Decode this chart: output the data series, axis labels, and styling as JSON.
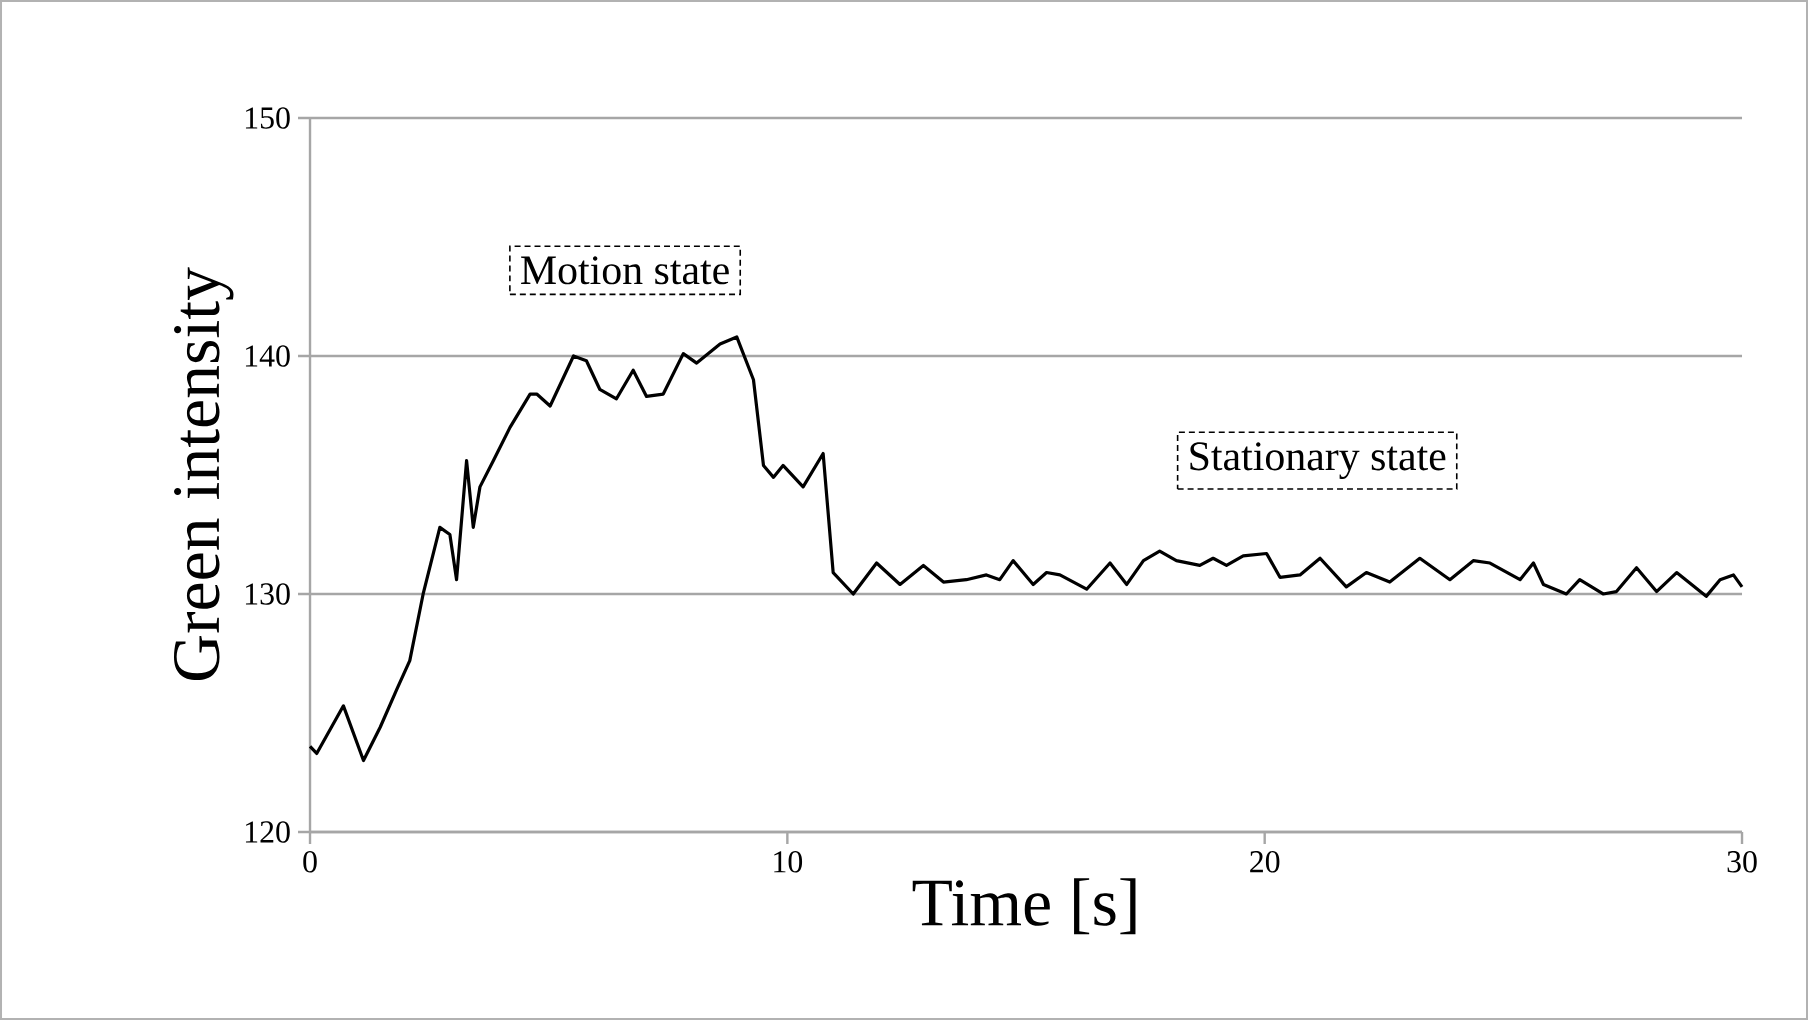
{
  "chart_data": {
    "type": "line",
    "xlabel": "Time [s]",
    "ylabel": "Green intensity",
    "xlim": [
      0,
      30
    ],
    "ylim": [
      120,
      150
    ],
    "xticks": [
      0,
      10,
      20,
      30
    ],
    "yticks": [
      120,
      130,
      140,
      150
    ],
    "grid": "y",
    "marker": "none",
    "line_style": "solid",
    "annotations": [
      "Motion state",
      "Stationary state"
    ],
    "series": [
      {
        "color": "#000000",
        "x": [
          0,
          0.14,
          0.7,
          1.12,
          1.47,
          1.82,
          2.09,
          2.37,
          2.72,
          2.93,
          3.07,
          3.28,
          3.42,
          3.56,
          3.84,
          4.19,
          4.61,
          4.75,
          5.03,
          5.52,
          5.79,
          6.07,
          6.42,
          6.77,
          7.05,
          7.4,
          7.82,
          8.1,
          8.59,
          8.94,
          9.29,
          9.5,
          9.71,
          9.91,
          10.33,
          10.75,
          10.96,
          11.38,
          11.87,
          12.36,
          12.85,
          13.27,
          13.75,
          14.17,
          14.45,
          14.73,
          15.15,
          15.43,
          15.71,
          16.27,
          16.76,
          17.11,
          17.46,
          17.8,
          18.15,
          18.64,
          18.92,
          19.2,
          19.55,
          20.04,
          20.32,
          20.74,
          21.16,
          21.71,
          22.13,
          22.62,
          23.25,
          23.88,
          24.37,
          24.72,
          25.35,
          25.63,
          25.84,
          26.32,
          26.6,
          27.09,
          27.37,
          27.79,
          28.21,
          28.63,
          29.25,
          29.54,
          29.82,
          30
        ],
        "values": [
          123.6,
          123.3,
          125.3,
          123.0,
          124.4,
          126.0,
          127.2,
          130.0,
          132.8,
          132.5,
          130.6,
          135.6,
          132.8,
          134.5,
          135.6,
          137.0,
          138.4,
          138.4,
          137.9,
          140.0,
          139.8,
          138.6,
          138.2,
          139.4,
          138.3,
          138.4,
          140.1,
          139.7,
          140.5,
          140.8,
          139.0,
          135.4,
          134.9,
          135.4,
          134.5,
          135.9,
          130.9,
          130.0,
          131.3,
          130.4,
          131.2,
          130.5,
          130.6,
          130.8,
          130.6,
          131.4,
          130.4,
          130.9,
          130.8,
          130.2,
          131.3,
          130.4,
          131.4,
          131.8,
          131.4,
          131.2,
          131.5,
          131.2,
          131.6,
          131.7,
          130.7,
          130.8,
          131.5,
          130.3,
          130.9,
          130.5,
          131.5,
          130.6,
          131.4,
          131.3,
          130.6,
          131.3,
          130.4,
          130.0,
          130.6,
          130.0,
          130.1,
          131.1,
          130.1,
          130.9,
          129.9,
          130.6,
          130.8,
          130.3
        ]
      }
    ]
  }
}
